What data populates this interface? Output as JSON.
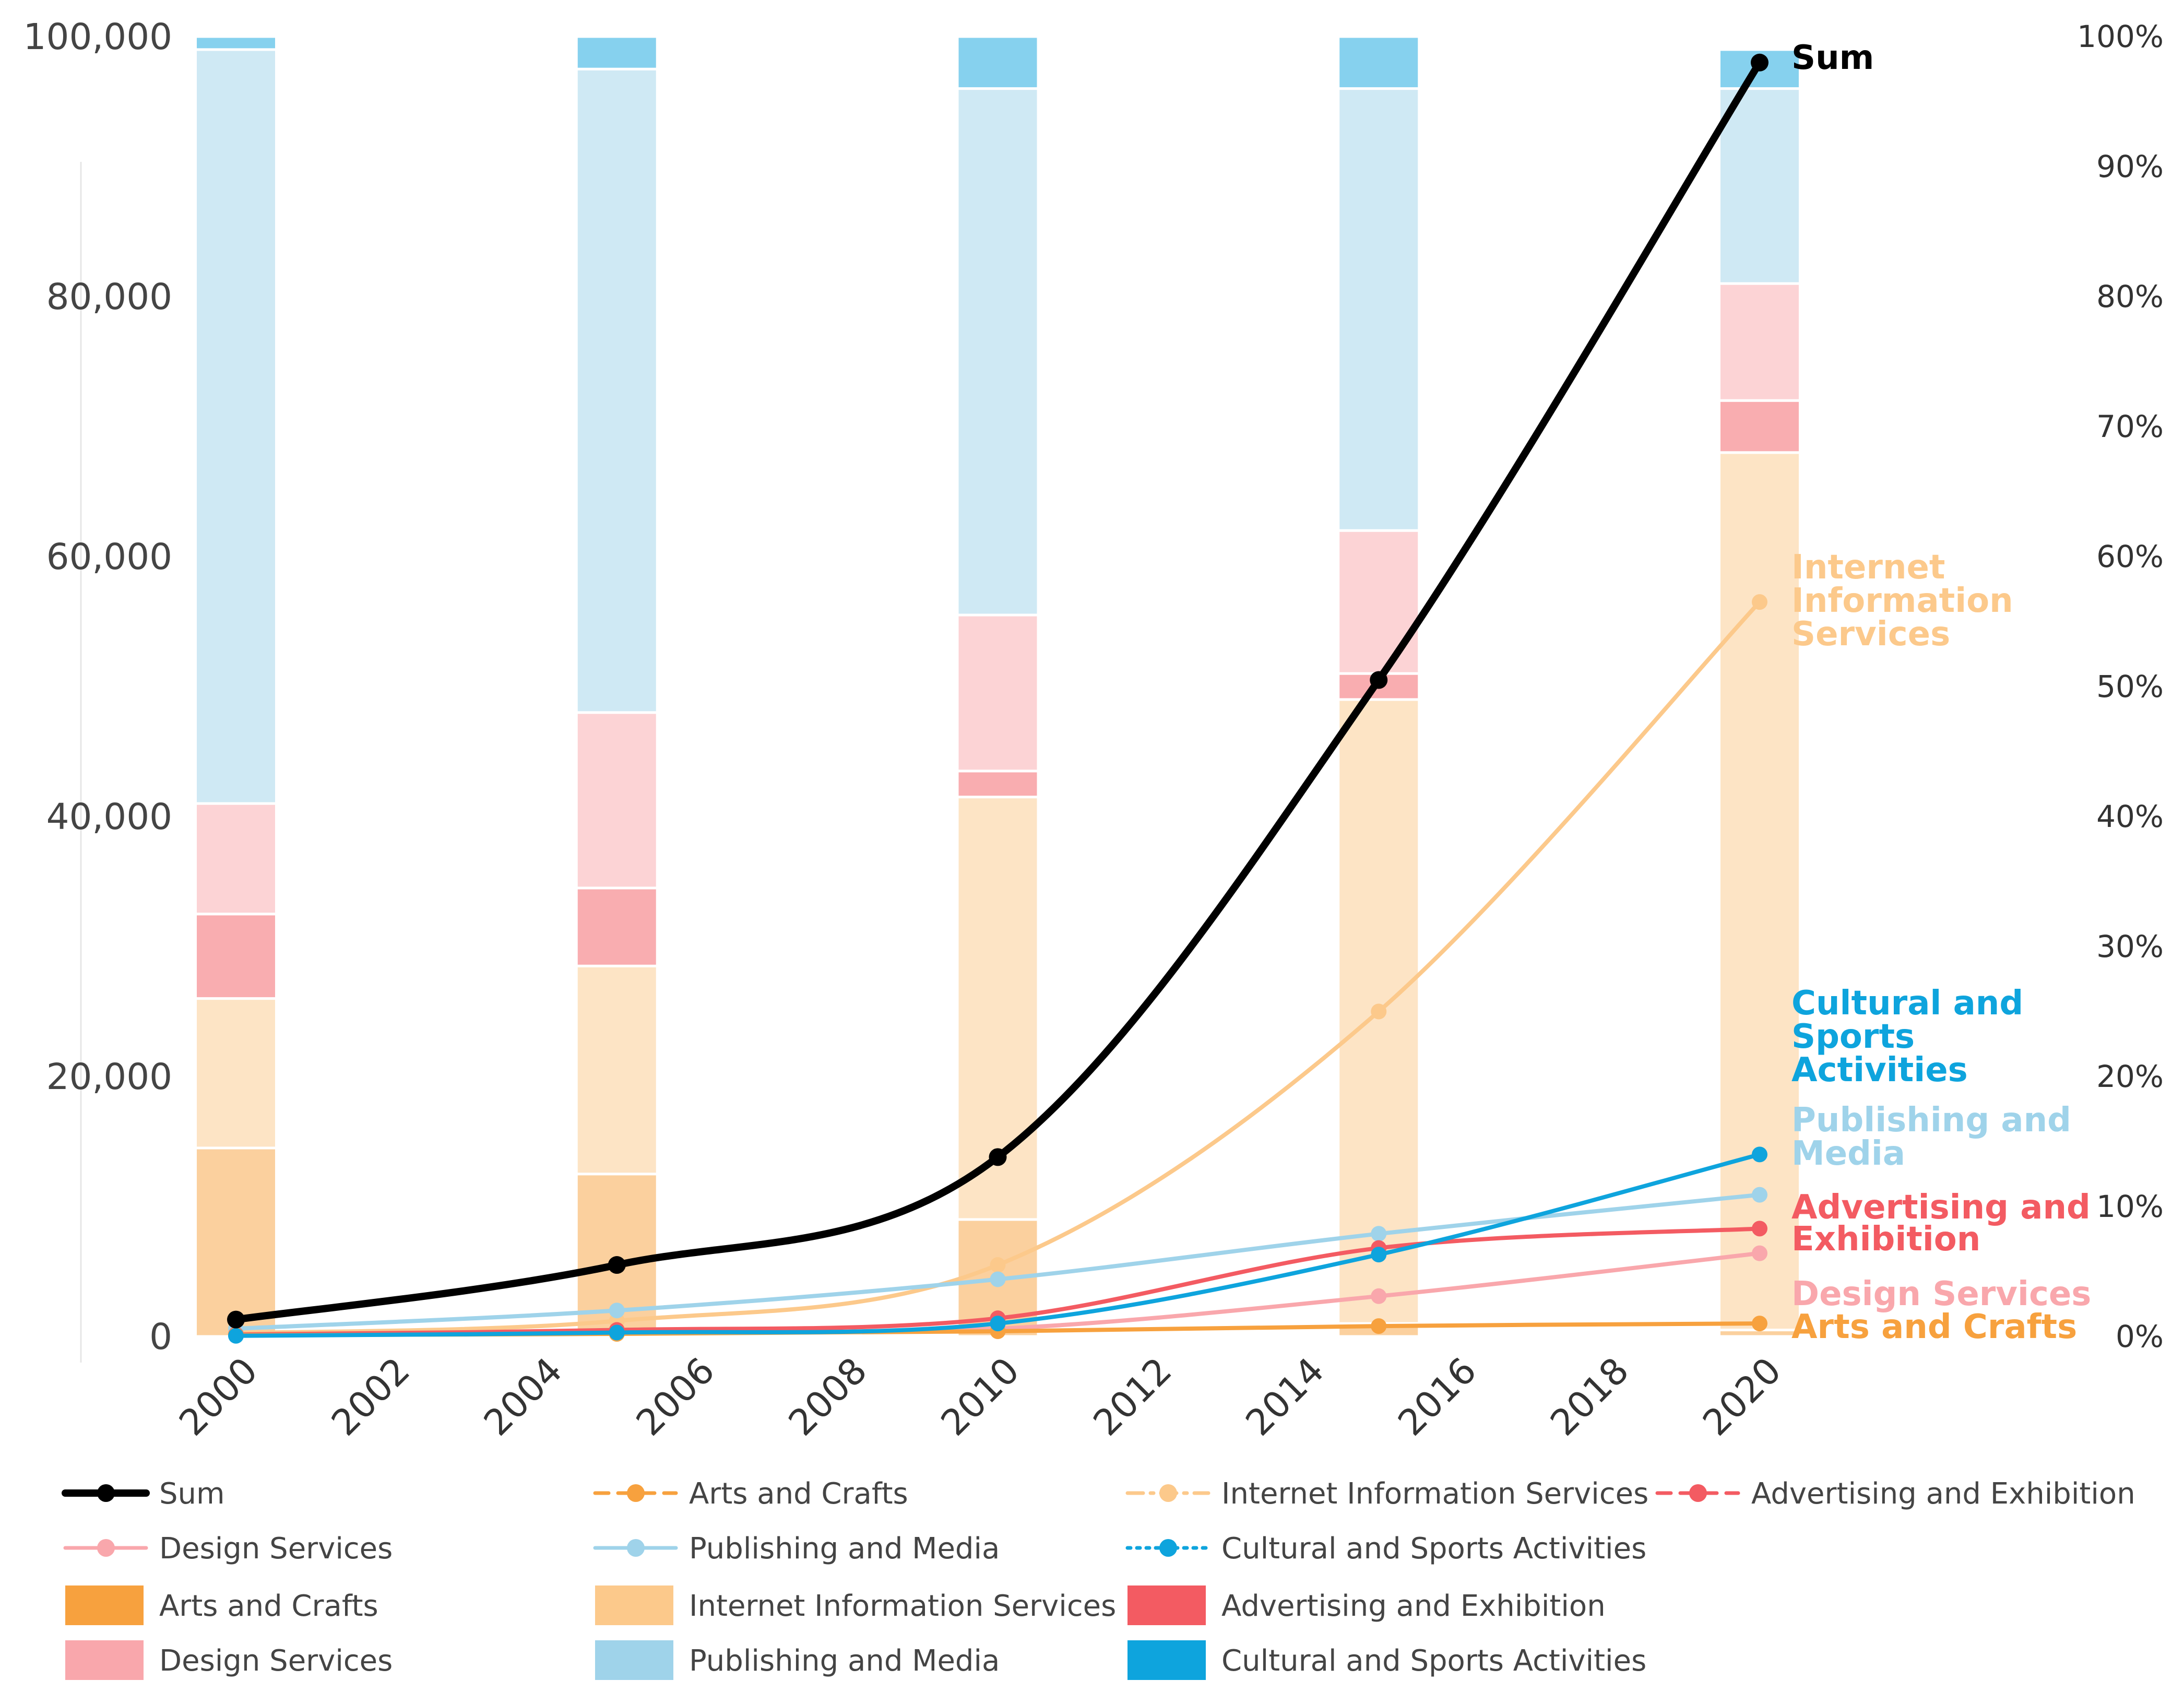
{
  "chart_data": {
    "type": "bar+line",
    "title": "",
    "x": [
      "2000",
      "2002",
      "2004",
      "2006",
      "2008",
      "2010",
      "2012",
      "2014",
      "2016",
      "2018",
      "2020"
    ],
    "bar_years": [
      2000,
      2005,
      2010,
      2015,
      2020
    ],
    "y_left": {
      "min": 0,
      "max": 100000,
      "ticks": [
        "0",
        "20,000",
        "40,000",
        "60,000",
        "80,000",
        "100,000"
      ]
    },
    "y_right": {
      "min": 0,
      "max": 100,
      "ticks": [
        "0%",
        "10%",
        "20%",
        "30%",
        "40%",
        "50%",
        "60%",
        "70%",
        "80%",
        "90%",
        "100%"
      ]
    },
    "colors": {
      "arts": "#f7a13e",
      "internet": "#fcc98b",
      "advertising": "#f35b62",
      "design": "#f9a7ac",
      "publishing": "#9fd3ea",
      "cultural": "#0ea4dd",
      "sum": "#000000"
    },
    "stacked_share_series": [
      {
        "name": "Arts and Crafts",
        "color": "arts",
        "values": [
          14.5,
          12.5,
          9.0,
          1.0,
          0.5
        ]
      },
      {
        "name": "Internet Information Services",
        "color": "internet",
        "values": [
          11.5,
          16.0,
          32.5,
          48.0,
          67.5
        ]
      },
      {
        "name": "Advertising and Exhibition",
        "color": "advertising",
        "values": [
          6.5,
          6.0,
          2.0,
          2.0,
          4.0
        ]
      },
      {
        "name": "Design Services",
        "color": "design",
        "values": [
          8.5,
          13.5,
          12.0,
          11.0,
          9.0
        ]
      },
      {
        "name": "Publishing and Media",
        "color": "publishing",
        "values": [
          58.0,
          49.5,
          40.5,
          34.0,
          15.0
        ]
      },
      {
        "name": "Cultural and Sports Activities",
        "color": "cultural",
        "values": [
          1.0,
          2.5,
          4.0,
          4.0,
          3.0
        ]
      }
    ],
    "line_series": [
      {
        "name": "Sum",
        "color": "sum",
        "values": [
          1300,
          5500,
          13800,
          50500,
          98000
        ]
      },
      {
        "name": "Internet Information Services",
        "color": "internet",
        "values": [
          250,
          1200,
          5500,
          25000,
          56500
        ]
      },
      {
        "name": "Publishing and Media",
        "color": "publishing",
        "values": [
          600,
          2000,
          4400,
          7900,
          10900
        ]
      },
      {
        "name": "Advertising and Exhibition",
        "color": "advertising",
        "values": [
          150,
          500,
          1400,
          6800,
          8300
        ]
      },
      {
        "name": "Design Services",
        "color": "design",
        "values": [
          100,
          400,
          600,
          3100,
          6400
        ]
      },
      {
        "name": "Cultural and Sports Activities",
        "color": "cultural",
        "values": [
          50,
          300,
          1000,
          6300,
          14000
        ]
      },
      {
        "name": "Arts and Crafts",
        "color": "arts",
        "values": [
          100,
          200,
          400,
          800,
          1000
        ]
      }
    ],
    "annotations": [
      {
        "text": "Sum",
        "color": "sum"
      },
      {
        "text": "Internet",
        "color": "internet"
      },
      {
        "text": "Information",
        "color": "internet"
      },
      {
        "text": "Services",
        "color": "internet"
      },
      {
        "text": "Cultural and",
        "color": "cultural"
      },
      {
        "text": "Sports",
        "color": "cultural"
      },
      {
        "text": "Activities",
        "color": "cultural"
      },
      {
        "text": "Publishing and",
        "color": "publishing"
      },
      {
        "text": "Media",
        "color": "publishing"
      },
      {
        "text": "Advertising and",
        "color": "advertising"
      },
      {
        "text": "Exhibition",
        "color": "advertising"
      },
      {
        "text": "Design Services",
        "color": "design"
      },
      {
        "text": "Arts and Crafts",
        "color": "arts"
      }
    ],
    "legend": [
      {
        "label": "Sum",
        "kind": "line",
        "style": "solid",
        "color": "sum"
      },
      {
        "label": "Arts and Crafts",
        "kind": "line",
        "style": "dashed",
        "color": "arts"
      },
      {
        "label": "Internet Information Services",
        "kind": "line",
        "style": "dashdot",
        "color": "internet"
      },
      {
        "label": "Advertising and Exhibition",
        "kind": "line",
        "style": "dashed",
        "color": "advertising"
      },
      {
        "label": "Design Services",
        "kind": "line",
        "style": "solid",
        "color": "design"
      },
      {
        "label": "Publishing and Media",
        "kind": "line",
        "style": "solid",
        "color": "publishing"
      },
      {
        "label": "Cultural and Sports Activities",
        "kind": "line",
        "style": "dotted",
        "color": "cultural"
      },
      {
        "label": "Arts and Crafts",
        "kind": "box",
        "color": "arts"
      },
      {
        "label": "Internet Information Services",
        "kind": "box",
        "color": "internet"
      },
      {
        "label": "Advertising and Exhibition",
        "kind": "box",
        "color": "advertising"
      },
      {
        "label": "Design Services",
        "kind": "box",
        "color": "design"
      },
      {
        "label": "Publishing and Media",
        "kind": "box",
        "color": "publishing"
      },
      {
        "label": "Cultural and Sports Activities",
        "kind": "box",
        "color": "cultural"
      }
    ],
    "xlabel": "",
    "ylabel": ""
  }
}
